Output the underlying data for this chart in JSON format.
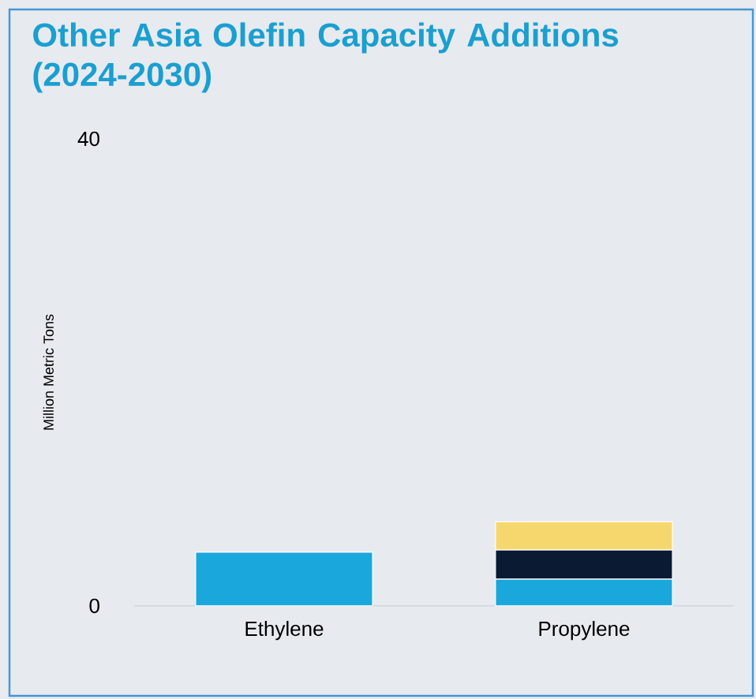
{
  "chart_data": {
    "type": "bar",
    "stacked": true,
    "title": "Other Asia Olefin Capacity Additions (2024-2030)",
    "ylabel": "Million Metric Tons",
    "categories": [
      "Ethylene",
      "Propylene"
    ],
    "series": [
      {
        "color": "#1aa7dc",
        "values": [
          4.6,
          2.3
        ]
      },
      {
        "color": "#0b1a33",
        "values": [
          null,
          2.5
        ]
      },
      {
        "color": "#f5d76e",
        "values": [
          null,
          2.4
        ]
      }
    ],
    "ylim": [
      0,
      40
    ],
    "yticks": [
      0,
      40
    ],
    "grid": false
  }
}
